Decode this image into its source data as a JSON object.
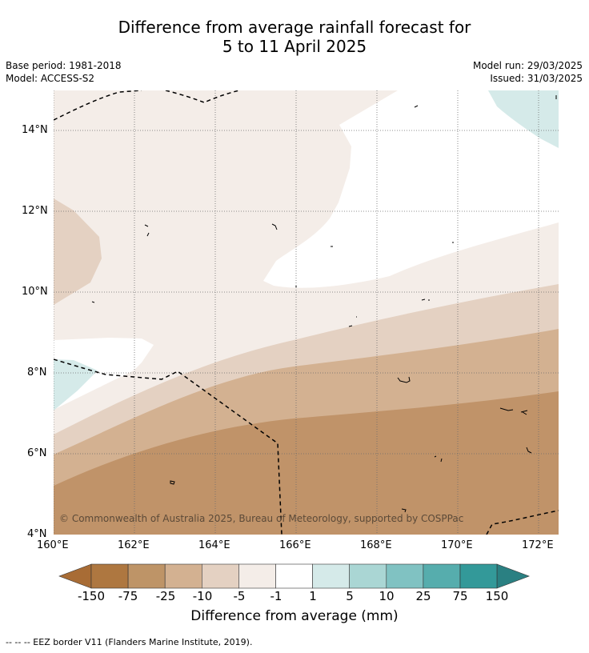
{
  "title": {
    "line1": "Difference from average rainfall forecast for",
    "line2": "5 to 11 April 2025"
  },
  "meta": {
    "base_period": "Base period: 1981-2018",
    "model": "Model: ACCESS-S2",
    "model_run": "Model run: 29/03/2025",
    "issued": "Issued: 31/03/2025"
  },
  "map": {
    "lat_labels": [
      "14°N",
      "12°N",
      "10°N",
      "8°N",
      "6°N",
      "4°N"
    ],
    "lon_labels": [
      "160°E",
      "162°E",
      "164°E",
      "166°E",
      "168°E",
      "170°E",
      "172°E"
    ],
    "copyright": "© Commonwealth of Australia 2025, Bureau of Meteorology, supported by COSPPac",
    "border_style": "dashed EEZ lines"
  },
  "colorbar": {
    "ticks": [
      "-150",
      "-75",
      "-25",
      "-10",
      "-5",
      "-1",
      "1",
      "5",
      "10",
      "25",
      "75",
      "150"
    ],
    "colors": [
      "#a86c35",
      "#ae7740",
      "#be9467",
      "#d3b191",
      "#e4d1c2",
      "#f4ede8",
      "#ffffff",
      "#d5eae9",
      "#aad6d4",
      "#80c2c2",
      "#56adad",
      "#339999",
      "#2a8082"
    ],
    "title": "Difference from average (mm)"
  },
  "footnote": "--  --  -- EEZ border V11 (Flanders Marine Institute, 2019)."
}
